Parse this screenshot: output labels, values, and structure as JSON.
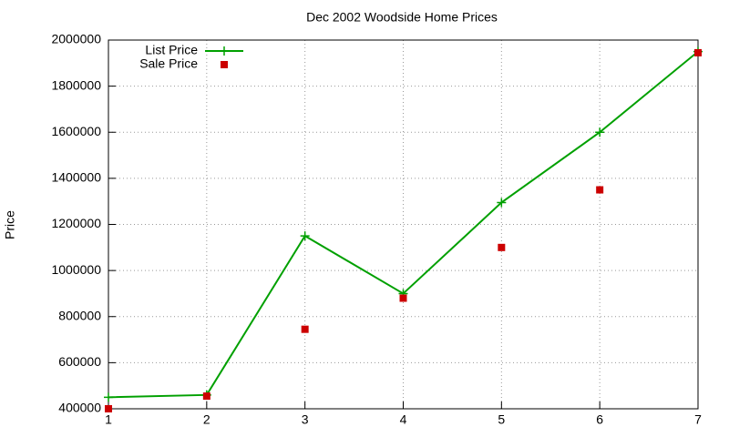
{
  "chart_data": {
    "type": "line",
    "title": "Dec 2002 Woodside Home Prices",
    "y_label": "Price",
    "x": [
      1,
      2,
      3,
      4,
      5,
      6,
      7
    ],
    "series": [
      {
        "name": "List Price",
        "color": "#00a000",
        "style": "linespoints",
        "values": [
          450000,
          460000,
          1150000,
          900000,
          1295000,
          1600000,
          1950000
        ]
      },
      {
        "name": "Sale Price",
        "color": "#cc0000",
        "style": "points",
        "values": [
          400000,
          455000,
          745000,
          880000,
          1100000,
          1350000,
          1945000
        ]
      }
    ],
    "xlim": [
      1,
      7
    ],
    "xticks": [
      1,
      2,
      3,
      4,
      5,
      6,
      7
    ],
    "ylim": [
      400000,
      2000000
    ],
    "yticks": [
      400000,
      600000,
      800000,
      1000000,
      1200000,
      1400000,
      1600000,
      1800000,
      2000000
    ],
    "grid": true,
    "legend": "top-left"
  }
}
